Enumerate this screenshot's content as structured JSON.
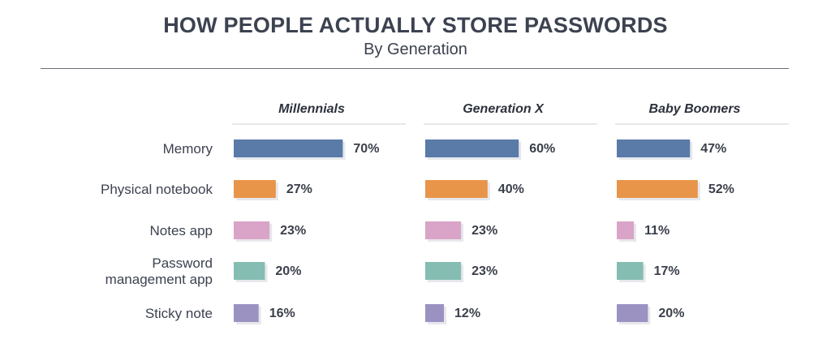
{
  "chart_data": {
    "type": "bar",
    "orientation": "horizontal",
    "title": "HOW PEOPLE ACTUALLY STORE PASSWORDS",
    "subtitle": "By Generation",
    "categories": [
      "Memory",
      "Physical notebook",
      "Notes app",
      "Password management app",
      "Sticky note"
    ],
    "category_lines": [
      [
        "Memory"
      ],
      [
        "Physical notebook"
      ],
      [
        "Notes app"
      ],
      [
        "Password",
        "management app"
      ],
      [
        "Sticky note"
      ]
    ],
    "category_colors": [
      "#5a7aa8",
      "#e8954a",
      "#d9a4c8",
      "#85bdb2",
      "#9b92c2"
    ],
    "series": [
      {
        "name": "Millennials",
        "values": [
          70,
          27,
          23,
          20,
          16
        ]
      },
      {
        "name": "Generation X",
        "values": [
          60,
          40,
          23,
          23,
          12
        ]
      },
      {
        "name": "Baby Boomers",
        "values": [
          47,
          52,
          11,
          17,
          20
        ]
      }
    ],
    "value_suffix": "%",
    "xlim": [
      0,
      100
    ]
  }
}
